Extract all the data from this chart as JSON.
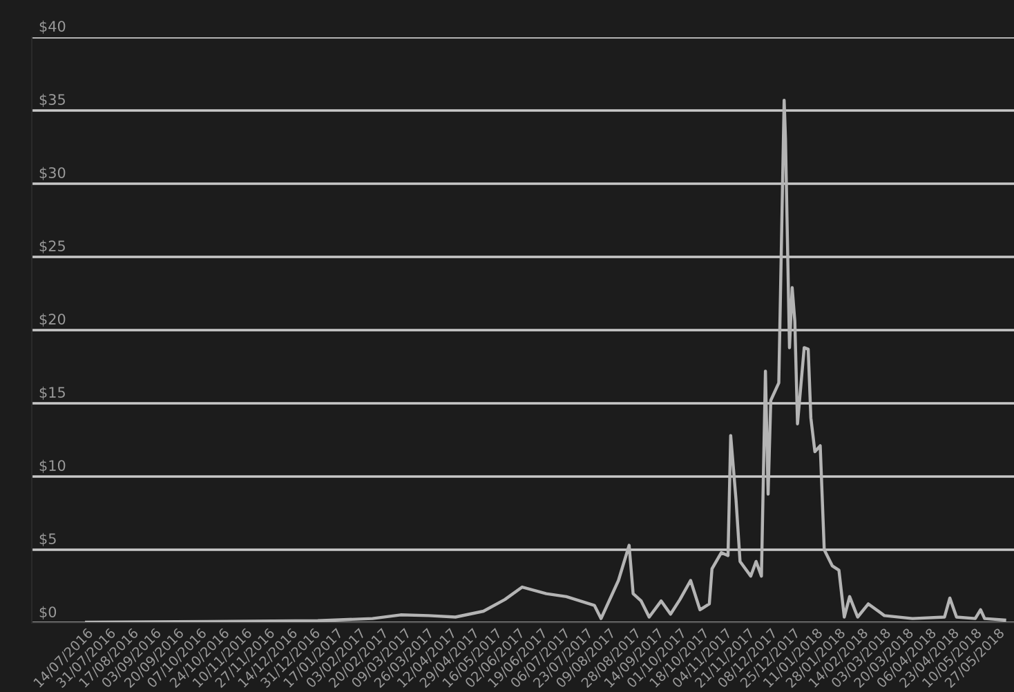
{
  "chart_data": {
    "type": "line",
    "x": [
      "2016-07-14",
      "2016-10-12",
      "2017-01-03",
      "2017-02-13",
      "2017-03-06",
      "2017-03-27",
      "2017-04-16",
      "2017-05-07",
      "2017-05-23",
      "2017-06-05",
      "2017-06-23",
      "2017-07-08",
      "2017-07-29",
      "2017-08-03",
      "2017-08-16",
      "2017-08-24",
      "2017-08-27",
      "2017-09-02",
      "2017-09-08",
      "2017-09-17",
      "2017-09-24",
      "2017-10-01",
      "2017-10-09",
      "2017-10-16",
      "2017-10-23",
      "2017-10-25",
      "2017-11-01",
      "2017-11-06",
      "2017-11-08",
      "2017-11-12",
      "2017-11-15",
      "2017-11-23",
      "2017-11-27",
      "2017-12-01",
      "2017-12-04",
      "2017-12-06",
      "2017-12-08",
      "2017-12-14",
      "2017-12-18",
      "2017-12-19",
      "2017-12-22",
      "2017-12-24",
      "2017-12-26",
      "2017-12-28",
      "2018-01-02",
      "2018-01-05",
      "2018-01-07",
      "2018-01-10",
      "2018-01-14",
      "2018-01-17",
      "2018-01-23",
      "2018-01-28",
      "2018-02-01",
      "2018-02-05",
      "2018-02-11",
      "2018-02-19",
      "2018-03-03",
      "2018-03-24",
      "2018-04-17",
      "2018-04-21",
      "2018-04-26",
      "2018-05-10",
      "2018-05-14",
      "2018-05-17",
      "2018-06-01"
    ],
    "series": [
      {
        "color": "#b4b4b4",
        "values": [
          0.05,
          0.1,
          0.15,
          0.3,
          0.55,
          0.5,
          0.4,
          0.8,
          1.6,
          2.45,
          2.0,
          1.8,
          1.2,
          0.3,
          2.9,
          5.3,
          2.0,
          1.5,
          0.4,
          1.5,
          0.6,
          1.6,
          2.9,
          0.9,
          1.3,
          3.7,
          4.8,
          4.6,
          12.8,
          8.4,
          4.2,
          3.2,
          4.2,
          3.2,
          17.2,
          8.8,
          15.2,
          16.4,
          35.7,
          33.1,
          18.8,
          22.9,
          20.6,
          13.6,
          18.8,
          18.7,
          14.0,
          11.7,
          12.1,
          5.0,
          3.9,
          3.6,
          0.4,
          1.8,
          0.4,
          1.3,
          0.5,
          0.3,
          0.4,
          1.7,
          0.4,
          0.3,
          0.9,
          0.3,
          0.2
        ]
      }
    ],
    "xlim": [
      "2016-06-03",
      "2018-06-08"
    ],
    "xticks": [
      {
        "value": "2016-07-14",
        "label": "14/07/2016"
      },
      {
        "value": "2016-07-31",
        "label": "31/07/2016"
      },
      {
        "value": "2016-08-17",
        "label": "17/08/2016"
      },
      {
        "value": "2016-09-03",
        "label": "03/09/2016"
      },
      {
        "value": "2016-09-20",
        "label": "20/09/2016"
      },
      {
        "value": "2016-10-07",
        "label": "07/10/2016"
      },
      {
        "value": "2016-10-24",
        "label": "24/10/2016"
      },
      {
        "value": "2016-11-10",
        "label": "10/11/2016"
      },
      {
        "value": "2016-11-27",
        "label": "27/11/2016"
      },
      {
        "value": "2016-12-14",
        "label": "14/12/2016"
      },
      {
        "value": "2016-12-31",
        "label": "31/12/2016"
      },
      {
        "value": "2017-01-17",
        "label": "17/01/2017"
      },
      {
        "value": "2017-02-03",
        "label": "03/02/2017"
      },
      {
        "value": "2017-02-20",
        "label": "20/02/2017"
      },
      {
        "value": "2017-03-09",
        "label": "09/03/2017"
      },
      {
        "value": "2017-03-26",
        "label": "26/03/2017"
      },
      {
        "value": "2017-04-12",
        "label": "12/04/2017"
      },
      {
        "value": "2017-04-29",
        "label": "29/04/2017"
      },
      {
        "value": "2017-05-16",
        "label": "16/05/2017"
      },
      {
        "value": "2017-06-02",
        "label": "02/06/2017"
      },
      {
        "value": "2017-06-19",
        "label": "19/06/2017"
      },
      {
        "value": "2017-07-06",
        "label": "06/07/2017"
      },
      {
        "value": "2017-07-23",
        "label": "23/07/2017"
      },
      {
        "value": "2017-08-09",
        "label": "09/08/2017"
      },
      {
        "value": "2017-08-28",
        "label": "28/08/2017"
      },
      {
        "value": "2017-09-14",
        "label": "14/09/2017"
      },
      {
        "value": "2017-10-01",
        "label": "01/10/2017"
      },
      {
        "value": "2017-10-18",
        "label": "18/10/2017"
      },
      {
        "value": "2017-11-04",
        "label": "04/11/2017"
      },
      {
        "value": "2017-11-21",
        "label": "21/11/2017"
      },
      {
        "value": "2017-12-08",
        "label": "08/12/2017"
      },
      {
        "value": "2017-12-25",
        "label": "25/12/2017"
      },
      {
        "value": "2018-01-11",
        "label": "11/01/2018"
      },
      {
        "value": "2018-01-28",
        "label": "28/01/2018"
      },
      {
        "value": "2018-02-14",
        "label": "14/02/2018"
      },
      {
        "value": "2018-03-03",
        "label": "03/03/2018"
      },
      {
        "value": "2018-03-20",
        "label": "20/03/2018"
      },
      {
        "value": "2018-04-06",
        "label": "06/04/2018"
      },
      {
        "value": "2018-04-23",
        "label": "23/04/2018"
      },
      {
        "value": "2018-05-10",
        "label": "10/05/2018"
      },
      {
        "value": "2018-05-27",
        "label": "27/05/2018"
      }
    ],
    "ylim": [
      0,
      40
    ],
    "yticks": [
      {
        "value": 0,
        "label": "$0"
      },
      {
        "value": 5,
        "label": "$5"
      },
      {
        "value": 10,
        "label": "$10"
      },
      {
        "value": 15,
        "label": "$15"
      },
      {
        "value": 20,
        "label": "$20"
      },
      {
        "value": 25,
        "label": "$25"
      },
      {
        "value": 30,
        "label": "$30"
      },
      {
        "value": 35,
        "label": "$35"
      },
      {
        "value": 40,
        "label": "$40"
      }
    ],
    "grid": "y"
  }
}
